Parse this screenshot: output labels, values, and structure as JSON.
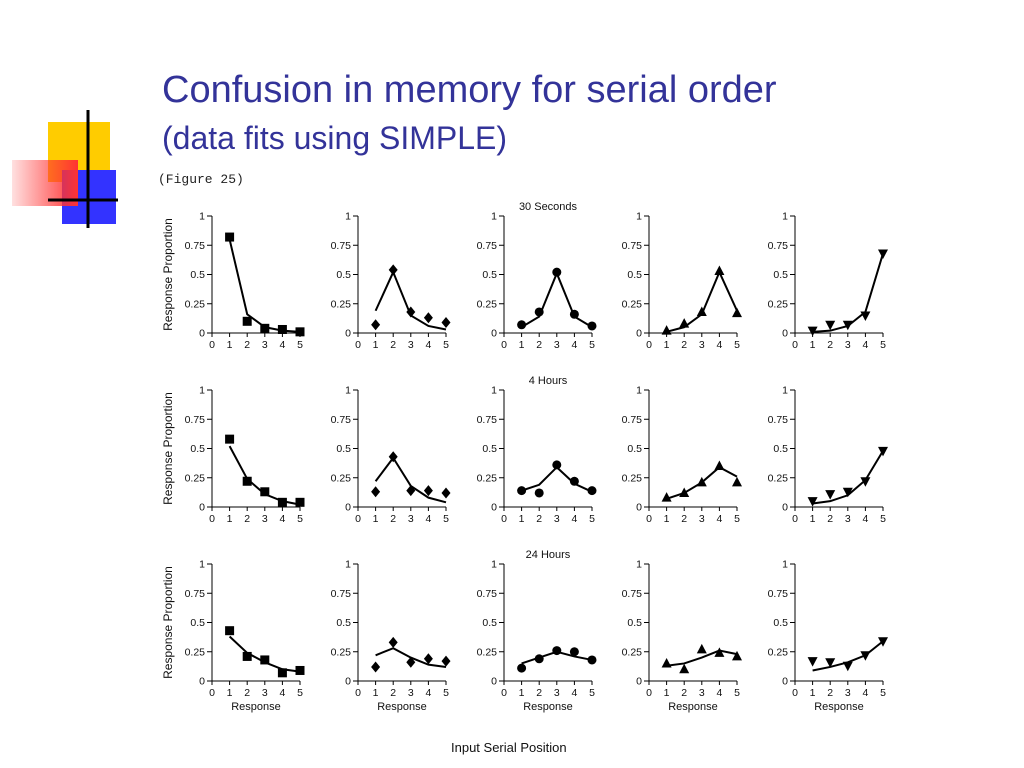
{
  "slide": {
    "title": "Confusion in memory for serial order",
    "subtitle": "(data fits using SIMPLE)",
    "figure_label": "(Figure 25)",
    "x_axis_footer": "Input Serial Position",
    "colors": {
      "title": "#333399",
      "deco_yellow": "#ffcc00",
      "deco_blue": "#3333ff",
      "deco_red": "#ff3333"
    }
  },
  "chart_data": {
    "type": "scatter",
    "description_rows": [
      "30 Seconds",
      "4 Hours",
      "24 Hours"
    ],
    "row_titles": [
      "30 Seconds",
      "4 Hours",
      "24 Hours"
    ],
    "ylabel": "Response Proportion",
    "xlabel": "Response",
    "xlim": [
      0,
      5
    ],
    "ylim": [
      0,
      1
    ],
    "x_ticks": [
      "0",
      "1",
      "2",
      "3",
      "4",
      "5"
    ],
    "y_ticks": [
      "0",
      "0.25",
      "0.5",
      "0.75",
      "1"
    ],
    "x": [
      1,
      2,
      3,
      4,
      5
    ],
    "markers": [
      "square",
      "diamond",
      "circle",
      "triangle-up",
      "triangle-down"
    ],
    "grid": false,
    "panels": [
      [
        {
          "data": [
            0.82,
            0.1,
            0.04,
            0.03,
            0.01
          ],
          "fit": [
            0.8,
            0.16,
            0.05,
            0.02,
            0.01
          ]
        },
        {
          "data": [
            0.07,
            0.54,
            0.18,
            0.13,
            0.09
          ],
          "fit": [
            0.19,
            0.52,
            0.15,
            0.06,
            0.03
          ]
        },
        {
          "data": [
            0.07,
            0.18,
            0.52,
            0.16,
            0.06
          ],
          "fit": [
            0.05,
            0.14,
            0.51,
            0.14,
            0.05
          ]
        },
        {
          "data": [
            0.02,
            0.08,
            0.18,
            0.53,
            0.17
          ],
          "fit": [
            0.01,
            0.05,
            0.16,
            0.52,
            0.19
          ]
        },
        {
          "data": [
            0.02,
            0.07,
            0.07,
            0.15,
            0.68
          ],
          "fit": [
            0.01,
            0.02,
            0.06,
            0.18,
            0.68
          ]
        }
      ],
      [
        {
          "data": [
            0.58,
            0.22,
            0.13,
            0.04,
            0.04
          ],
          "fit": [
            0.52,
            0.24,
            0.11,
            0.05,
            0.02
          ]
        },
        {
          "data": [
            0.13,
            0.43,
            0.14,
            0.14,
            0.12
          ],
          "fit": [
            0.22,
            0.42,
            0.18,
            0.08,
            0.04
          ]
        },
        {
          "data": [
            0.14,
            0.12,
            0.36,
            0.22,
            0.14
          ],
          "fit": [
            0.14,
            0.19,
            0.34,
            0.2,
            0.13
          ]
        },
        {
          "data": [
            0.08,
            0.12,
            0.21,
            0.35,
            0.21
          ],
          "fit": [
            0.07,
            0.12,
            0.21,
            0.34,
            0.26
          ]
        },
        {
          "data": [
            0.05,
            0.11,
            0.13,
            0.22,
            0.48
          ],
          "fit": [
            0.03,
            0.05,
            0.1,
            0.23,
            0.48
          ]
        }
      ],
      [
        {
          "data": [
            0.43,
            0.21,
            0.18,
            0.07,
            0.09
          ],
          "fit": [
            0.38,
            0.24,
            0.16,
            0.1,
            0.08
          ]
        },
        {
          "data": [
            0.12,
            0.33,
            0.16,
            0.19,
            0.17
          ],
          "fit": [
            0.22,
            0.28,
            0.2,
            0.14,
            0.12
          ]
        },
        {
          "data": [
            0.11,
            0.19,
            0.26,
            0.25,
            0.18
          ],
          "fit": [
            0.15,
            0.2,
            0.25,
            0.21,
            0.18
          ]
        },
        {
          "data": [
            0.15,
            0.1,
            0.27,
            0.24,
            0.21
          ],
          "fit": [
            0.13,
            0.15,
            0.2,
            0.26,
            0.23
          ]
        },
        {
          "data": [
            0.17,
            0.16,
            0.13,
            0.22,
            0.34
          ],
          "fit": [
            0.09,
            0.12,
            0.16,
            0.22,
            0.34
          ]
        }
      ]
    ]
  }
}
